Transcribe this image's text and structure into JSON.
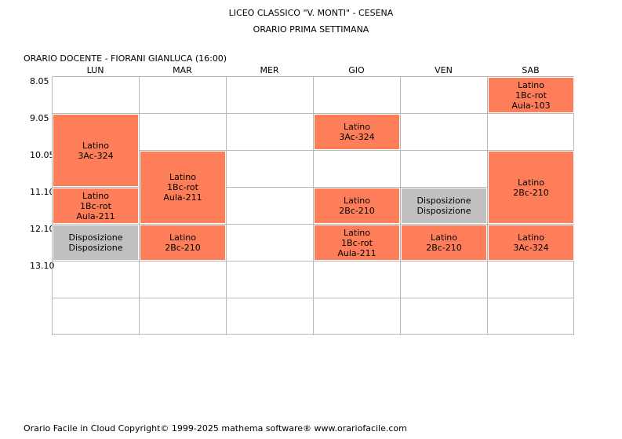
{
  "header": {
    "school": "LICEO CLASSICO \"V. MONTI\" - CESENA",
    "week": "ORARIO PRIMA SETTIMANA",
    "teacher_line": "ORARIO DOCENTE   -   FIORANI GIANLUCA  (16:00)"
  },
  "days": [
    "LUN",
    "MAR",
    "MER",
    "GIO",
    "VEN",
    "SAB"
  ],
  "hours": [
    "8.05",
    "9.05",
    "10.05",
    "11.10",
    "12.10",
    "13.10"
  ],
  "lessons": [
    {
      "day": 0,
      "start": 1,
      "span": 2,
      "lines": [
        "Latino",
        "3Ac-324"
      ],
      "kind": "orange"
    },
    {
      "day": 0,
      "start": 3,
      "span": 1,
      "lines": [
        "Latino",
        "1Bc-rot",
        "Aula-211"
      ],
      "kind": "orange"
    },
    {
      "day": 0,
      "start": 4,
      "span": 1,
      "lines": [
        "Disposizione",
        "Disposizione"
      ],
      "kind": "grey"
    },
    {
      "day": 1,
      "start": 2,
      "span": 2,
      "lines": [
        "Latino",
        "1Bc-rot",
        "Aula-211"
      ],
      "kind": "orange"
    },
    {
      "day": 1,
      "start": 4,
      "span": 1,
      "lines": [
        "Latino",
        "2Bc-210"
      ],
      "kind": "orange"
    },
    {
      "day": 3,
      "start": 1,
      "span": 1,
      "lines": [
        "Latino",
        "3Ac-324"
      ],
      "kind": "orange"
    },
    {
      "day": 3,
      "start": 3,
      "span": 1,
      "lines": [
        "Latino",
        "2Bc-210"
      ],
      "kind": "orange"
    },
    {
      "day": 3,
      "start": 4,
      "span": 1,
      "lines": [
        "Latino",
        "1Bc-rot",
        "Aula-211"
      ],
      "kind": "orange"
    },
    {
      "day": 4,
      "start": 3,
      "span": 1,
      "lines": [
        "Disposizione",
        "Disposizione"
      ],
      "kind": "grey"
    },
    {
      "day": 4,
      "start": 4,
      "span": 1,
      "lines": [
        "Latino",
        "2Bc-210"
      ],
      "kind": "orange"
    },
    {
      "day": 5,
      "start": 0,
      "span": 1,
      "lines": [
        "Latino",
        "1Bc-rot",
        "Aula-103"
      ],
      "kind": "orange"
    },
    {
      "day": 5,
      "start": 2,
      "span": 2,
      "lines": [
        "Latino",
        "2Bc-210"
      ],
      "kind": "orange"
    },
    {
      "day": 5,
      "start": 4,
      "span": 1,
      "lines": [
        "Latino",
        "3Ac-324"
      ],
      "kind": "orange"
    }
  ],
  "footer": "Orario Facile in Cloud  Copyright© 1999-2025 mathema software®     www.orariofacile.com",
  "colors": {
    "lesson": "#ff7e5a",
    "disposizione": "#c0c0c0",
    "grid": "#b9b9b9"
  }
}
